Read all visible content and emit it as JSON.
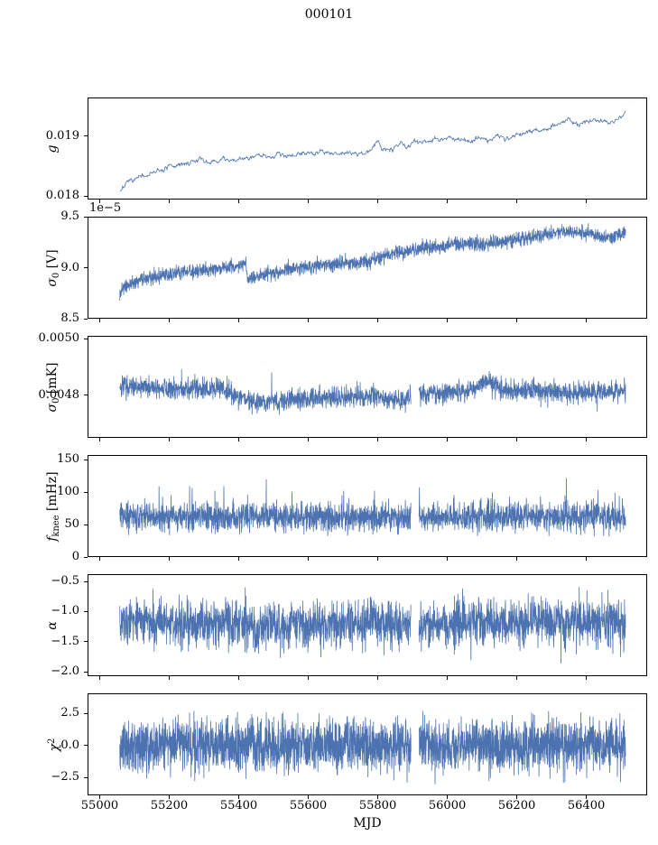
{
  "figure": {
    "title": "000101",
    "xlabel": "MJD",
    "line_color": "#4c72b0",
    "background": "#ffffff",
    "spine_color": "#000000"
  },
  "chart_data": {
    "type": "line",
    "title": "000101",
    "xlabel": "MJD",
    "legend": "none",
    "grid": false,
    "xlim": [
      54965,
      56575
    ],
    "x_range": [
      55055,
      56510
    ],
    "xticks": {
      "values": [
        55000,
        55200,
        55400,
        55600,
        55800,
        56000,
        56200,
        56400
      ],
      "labels": [
        "55000",
        "55200",
        "55400",
        "55600",
        "55800",
        "56000",
        "56200",
        "56400"
      ]
    },
    "panels": [
      {
        "name": "g",
        "ylabel_parts": [
          {
            "t": "g",
            "italic": true
          }
        ],
        "ylim": [
          0.017945,
          0.019645
        ],
        "yticks": {
          "values": [
            0.019,
            0.018
          ],
          "labels": [
            "0.019",
            "0.018"
          ]
        },
        "trend": {
          "x": [
            55055,
            55070,
            55090,
            55110,
            55140,
            55170,
            55200,
            55230,
            55260,
            55285,
            55310,
            55335,
            55360,
            55390,
            55420,
            55450,
            55480,
            55510,
            55540,
            55570,
            55600,
            55630,
            55660,
            55690,
            55720,
            55750,
            55780,
            55795,
            55810,
            55840,
            55860,
            55880,
            55900,
            55925,
            55950,
            55975,
            56000,
            56030,
            56060,
            56090,
            56110,
            56130,
            56150,
            56170,
            56200,
            56230,
            56260,
            56290,
            56320,
            56345,
            56370,
            56400,
            56430,
            56460,
            56485,
            56510
          ],
          "y": [
            0.01812,
            0.0182,
            0.01827,
            0.01831,
            0.01838,
            0.01844,
            0.0185,
            0.01854,
            0.01858,
            0.01863,
            0.01856,
            0.0186,
            0.01865,
            0.01862,
            0.01866,
            0.0187,
            0.01868,
            0.01872,
            0.0187,
            0.01873,
            0.01872,
            0.01874,
            0.01876,
            0.01873,
            0.01875,
            0.01872,
            0.01877,
            0.01895,
            0.01879,
            0.01882,
            0.01889,
            0.01884,
            0.01892,
            0.01893,
            0.01896,
            0.01894,
            0.01899,
            0.01897,
            0.01894,
            0.019,
            0.01893,
            0.01903,
            0.019,
            0.01898,
            0.01905,
            0.01908,
            0.01912,
            0.01916,
            0.01922,
            0.01933,
            0.0192,
            0.01926,
            0.01929,
            0.01923,
            0.01928,
            0.0194
          ]
        },
        "noise_sd": 5e-05,
        "smooth": 3,
        "n": 900,
        "seed": 7
      },
      {
        "name": "sigma0-V",
        "ylabel_parts": [
          {
            "t": "σ",
            "italic": true
          },
          {
            "t": "0",
            "sub": true
          },
          {
            "t": " [V]"
          }
        ],
        "offset_text": "1e−5",
        "ylim": [
          8.5,
          9.5
        ],
        "yticks": {
          "values": [
            9.5,
            9.0,
            8.5
          ],
          "labels": [
            "9.5",
            "9.0",
            "8.5"
          ]
        },
        "trend": {
          "x": [
            55055,
            55070,
            55100,
            55150,
            55200,
            55250,
            55300,
            55350,
            55400,
            55418,
            55422,
            55450,
            55500,
            55550,
            55600,
            55650,
            55700,
            55750,
            55800,
            55850,
            55900,
            55950,
            56000,
            56050,
            56100,
            56150,
            56200,
            56250,
            56300,
            56350,
            56400,
            56440,
            56480,
            56510
          ],
          "y": [
            8.78,
            8.82,
            8.87,
            8.92,
            8.95,
            8.97,
            8.99,
            9.0,
            9.03,
            9.05,
            8.9,
            8.92,
            8.96,
            8.99,
            9.02,
            9.03,
            9.05,
            9.06,
            9.1,
            9.15,
            9.18,
            9.2,
            9.23,
            9.25,
            9.23,
            9.26,
            9.28,
            9.32,
            9.35,
            9.37,
            9.35,
            9.3,
            9.32,
            9.35
          ]
        },
        "noise_sd": 0.035,
        "n": 2600,
        "seed": 13
      },
      {
        "name": "sigma0-mK",
        "ylabel_parts": [
          {
            "t": "σ",
            "italic": true
          },
          {
            "t": "0",
            "sub": true
          },
          {
            "t": " [mK]"
          }
        ],
        "ylim": [
          0.004648,
          0.00501
        ],
        "yticks": {
          "values": [
            0.005,
            0.0048
          ],
          "labels": [
            "0.0050",
            "0.0048"
          ]
        },
        "trend": {
          "x": [
            55055,
            55150,
            55250,
            55350,
            55420,
            55450,
            55480,
            55520,
            55600,
            55700,
            55800,
            55850,
            55900,
            56000,
            56080,
            56110,
            56130,
            56160,
            56250,
            56350,
            56450,
            56510
          ],
          "y": [
            0.004835,
            0.004828,
            0.004822,
            0.004828,
            0.00479,
            0.004775,
            0.004778,
            0.004782,
            0.00479,
            0.004797,
            0.0048,
            0.004782,
            0.004808,
            0.00481,
            0.004825,
            0.004855,
            0.00484,
            0.00482,
            0.004818,
            0.004812,
            0.004815,
            0.004822
          ]
        },
        "noise_sd": 1.8e-05,
        "spikes": {
          "prob": 0.01,
          "amp": 6e-05,
          "sign": 0
        },
        "gaps": [
          [
            55893,
            55916
          ]
        ],
        "n": 2600,
        "seed": 21
      },
      {
        "name": "fknee",
        "ylabel_parts": [
          {
            "t": "f",
            "italic": true
          },
          {
            "t": "knee",
            "sub": true
          },
          {
            "t": " [mHz]"
          }
        ],
        "ylim": [
          0,
          157
        ],
        "yticks": {
          "values": [
            150,
            100,
            50,
            0
          ],
          "labels": [
            "150",
            "100",
            "50",
            "0"
          ]
        },
        "trend": {
          "x": [
            55055,
            55600,
            56000,
            56510
          ],
          "y": [
            64,
            62,
            63,
            64
          ]
        },
        "noise_sd": 11,
        "spikes": {
          "prob": 0.012,
          "amp": 55,
          "sign": 1
        },
        "clip": [
          33,
          152
        ],
        "gaps": [
          [
            55893,
            55916
          ]
        ],
        "n": 2600,
        "seed": 33
      },
      {
        "name": "alpha",
        "ylabel_parts": [
          {
            "t": "α",
            "italic": true
          }
        ],
        "ylim": [
          -2.07,
          -0.38
        ],
        "yticks": {
          "values": [
            -0.5,
            -1.0,
            -1.5,
            -2.0
          ],
          "labels": [
            "−0.5",
            "−1.0",
            "−1.5",
            "−2.0"
          ]
        },
        "trend": {
          "x": [
            55055,
            55300,
            55500,
            55700,
            55900,
            56100,
            56300,
            56510
          ],
          "y": [
            -1.13,
            -1.18,
            -1.22,
            -1.15,
            -1.18,
            -1.16,
            -1.17,
            -1.15
          ]
        },
        "noise_sd": 0.19,
        "spikes": {
          "prob": 0.005,
          "amp": 0.45,
          "sign": -1
        },
        "clip": [
          -1.97,
          -0.52
        ],
        "gaps": [
          [
            55893,
            55916
          ]
        ],
        "n": 2600,
        "seed": 41
      },
      {
        "name": "chi2",
        "ylabel_parts": [
          {
            "t": "χ",
            "italic": true
          },
          {
            "t": "2",
            "sup": true
          }
        ],
        "ylim": [
          -3.9,
          4.05
        ],
        "yticks": {
          "values": [
            2.5,
            0.0,
            -2.5
          ],
          "labels": [
            "2.5",
            "0.0",
            "−2.5"
          ]
        },
        "trend": {
          "x": [
            55055,
            56510
          ],
          "y": [
            0.05,
            0.05
          ]
        },
        "noise_sd": 1.0,
        "clip": [
          -3.3,
          2.75
        ],
        "gaps": [
          [
            55893,
            55916
          ]
        ],
        "n": 3000,
        "seed": 55
      }
    ]
  }
}
